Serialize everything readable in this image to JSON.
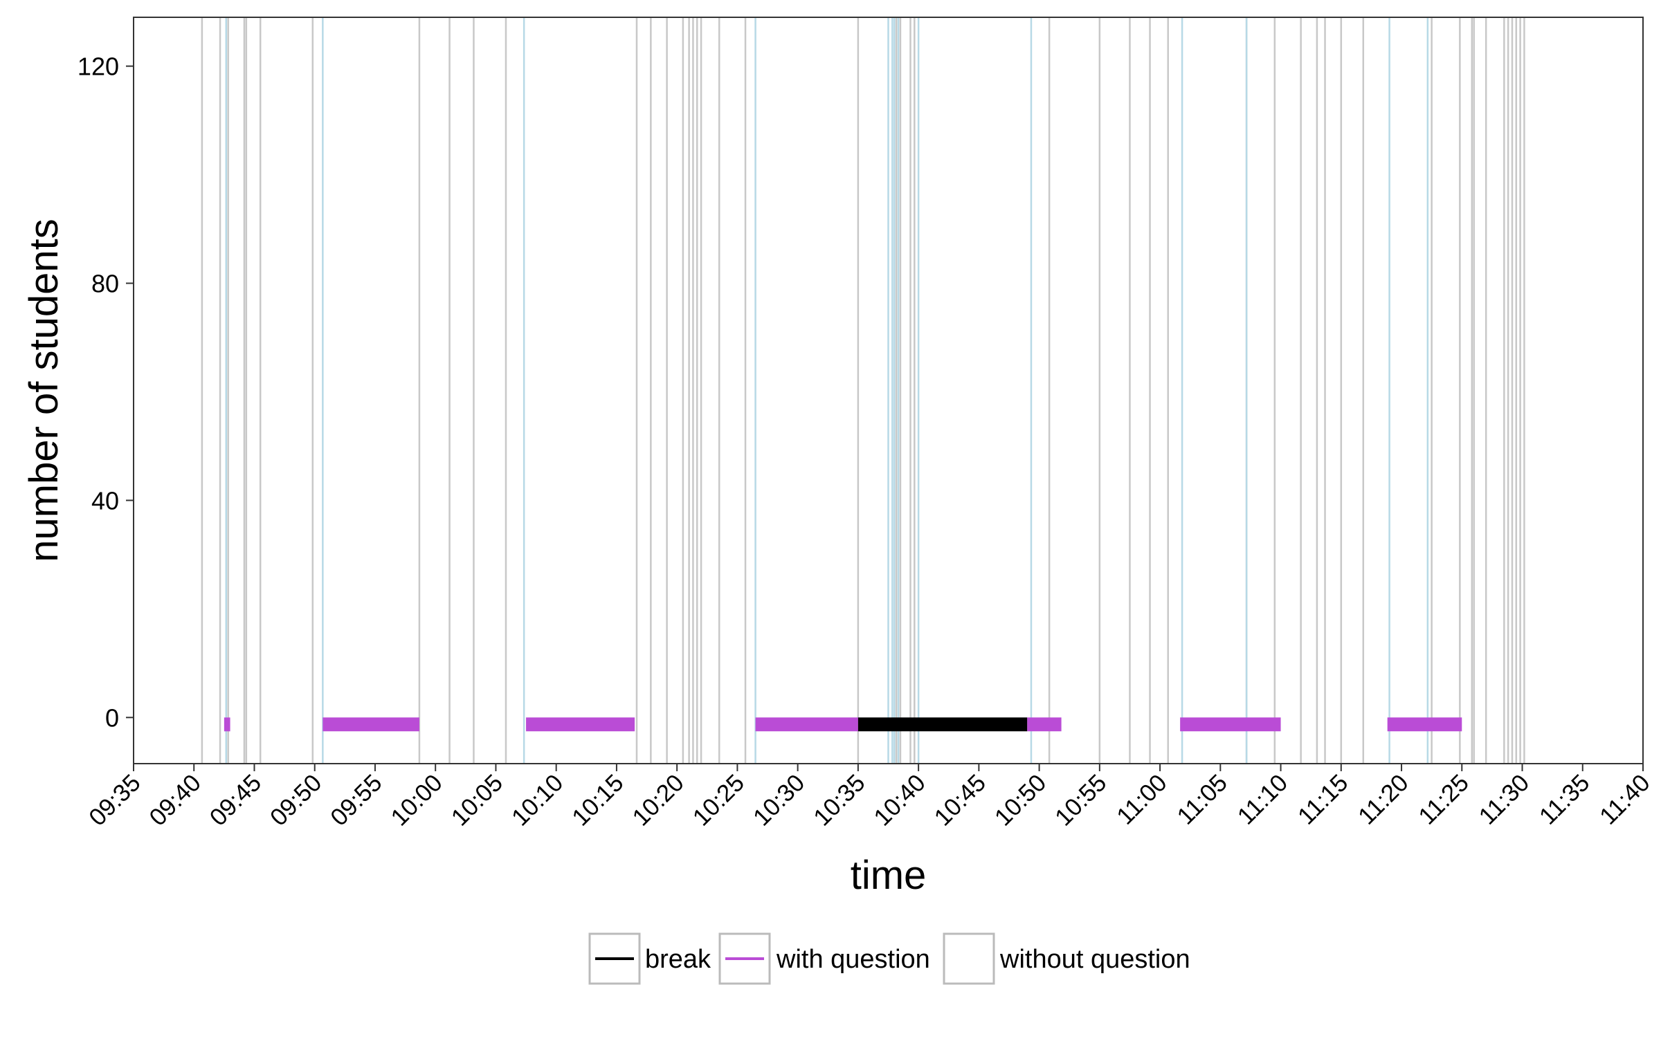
{
  "chart_data": {
    "type": "timeline",
    "xlabel": "time",
    "ylabel": "number of students",
    "x_range": [
      "09:35",
      "11:40"
    ],
    "ylim": [
      -8.5,
      129
    ],
    "x_tick_labels": [
      "09:35",
      "09:40",
      "09:45",
      "09:50",
      "09:55",
      "10:00",
      "10:05",
      "10:10",
      "10:15",
      "10:20",
      "10:25",
      "10:30",
      "10:35",
      "10:40",
      "10:45",
      "10:50",
      "10:55",
      "11:00",
      "11:05",
      "11:10",
      "11:15",
      "11:20",
      "11:25",
      "11:30",
      "11:35",
      "11:40"
    ],
    "y_ticks": [
      0,
      40,
      80,
      120
    ],
    "grid": false,
    "legend_position": "bottom",
    "legend": [
      {
        "label": "break",
        "color": "#000000"
      },
      {
        "label": "with question",
        "color": "#BA4CD6"
      },
      {
        "label": "without question",
        "color": "#CCCCCC"
      }
    ],
    "series": [
      {
        "name": "with question",
        "color": "#BA4CD6",
        "y": 0,
        "segments": [
          [
            "09:42:30",
            "09:43:00"
          ],
          [
            "09:50:40",
            "09:58:40"
          ],
          [
            "10:07:30",
            "10:16:30"
          ],
          [
            "10:26:30",
            "10:35:00"
          ],
          [
            "10:49:00",
            "10:51:50"
          ],
          [
            "11:01:40",
            "11:10:00"
          ],
          [
            "11:18:50",
            "11:25:00"
          ]
        ]
      },
      {
        "name": "break",
        "color": "#000000",
        "y": 0,
        "segments": [
          [
            "10:35:00",
            "10:49:00"
          ]
        ]
      }
    ],
    "event_lines": {
      "gray": [
        "09:40:40",
        "09:42:10",
        "09:42:50",
        "09:44:10",
        "09:44:20",
        "09:45:30",
        "09:49:50",
        "09:58:40",
        "10:01:10",
        "10:03:10",
        "10:05:50",
        "10:16:40",
        "10:17:50",
        "10:19:10",
        "10:20:30",
        "10:21:00",
        "10:21:20",
        "10:21:40",
        "10:22:00",
        "10:23:30",
        "10:25:40",
        "10:35:00",
        "10:38:10",
        "10:38:30",
        "10:39:20",
        "10:39:40",
        "10:50:50",
        "10:55:00",
        "10:57:30",
        "10:59:10",
        "11:00:40",
        "11:07:10",
        "11:09:30",
        "11:11:40",
        "11:13:00",
        "11:13:40",
        "11:15:00",
        "11:16:50",
        "11:22:30",
        "11:24:50",
        "11:25:50",
        "11:26:00",
        "11:27:00",
        "11:28:30",
        "11:28:50",
        "11:29:10",
        "11:29:30",
        "11:29:50",
        "11:30:10"
      ],
      "blue": [
        "09:42:40",
        "09:50:40",
        "10:07:20",
        "10:26:30",
        "10:37:30",
        "10:37:50",
        "10:38:00",
        "10:38:20",
        "10:40:00",
        "10:49:20",
        "11:01:50",
        "11:07:10",
        "11:19:00",
        "11:22:10"
      ]
    }
  }
}
